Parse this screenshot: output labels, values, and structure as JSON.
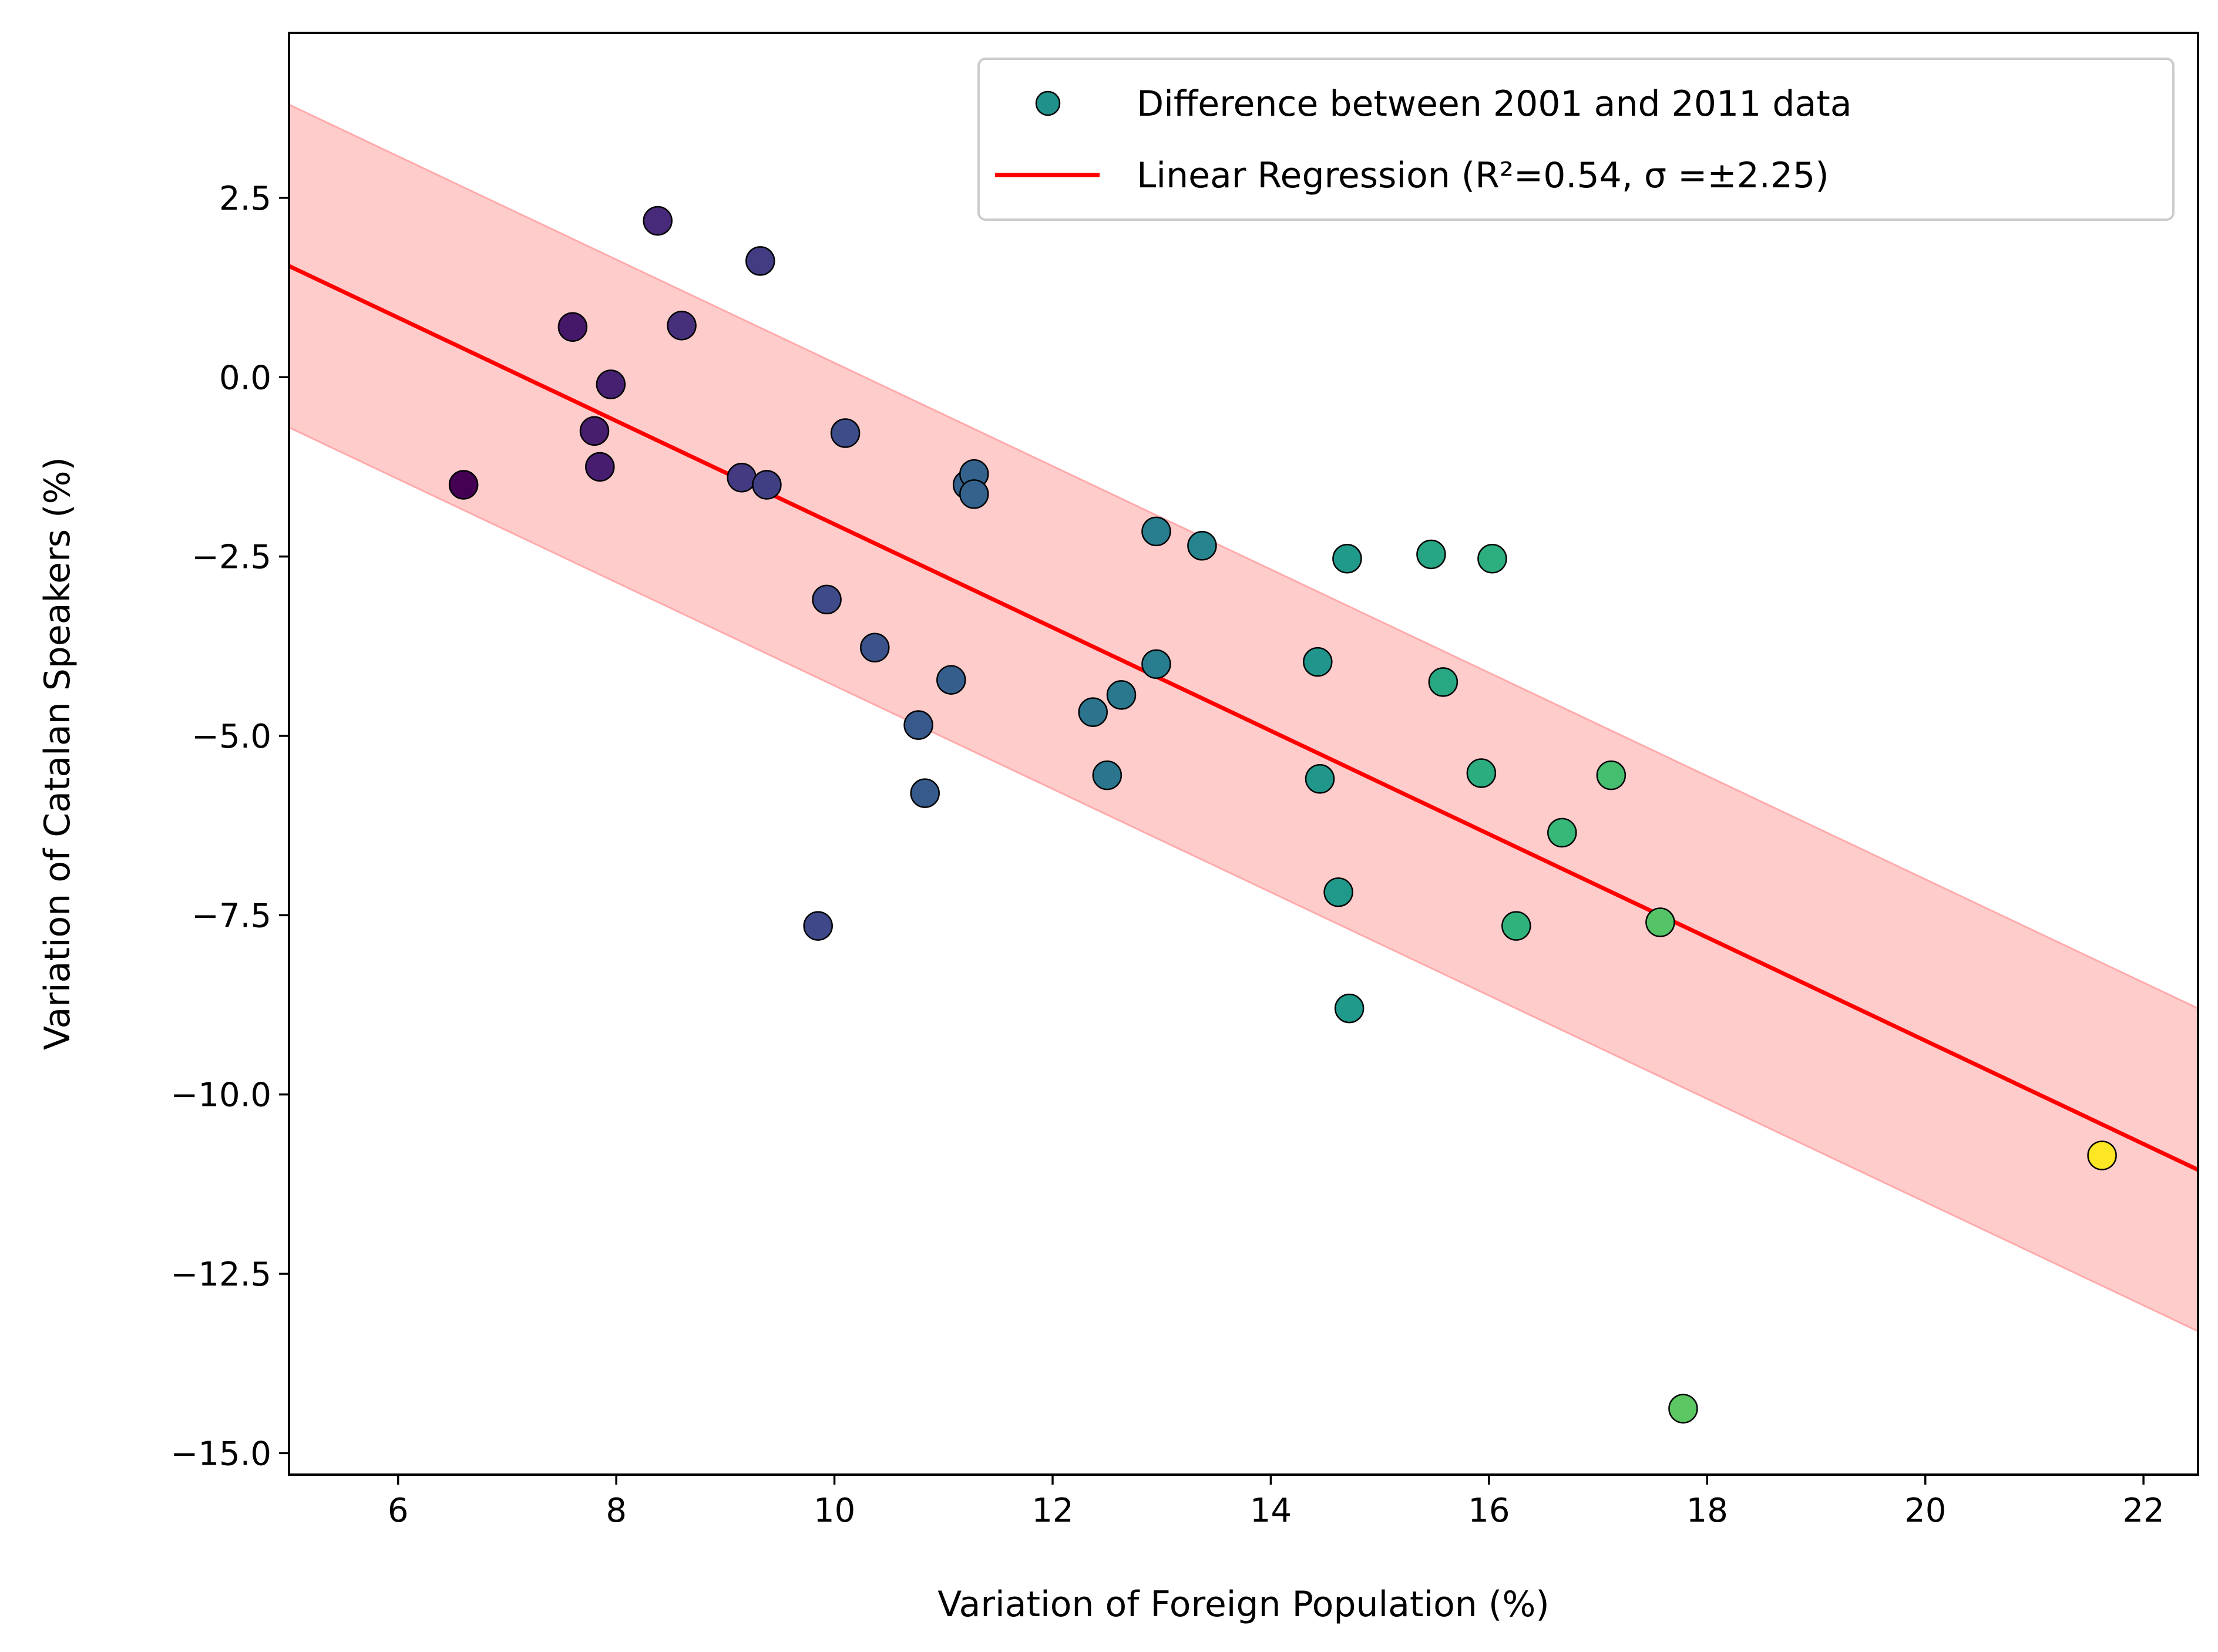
{
  "chart_data": {
    "type": "scatter",
    "title": "",
    "xlabel": "Variation of Foreign Population (%)",
    "ylabel": "Variation of Catalan Speakers (%)",
    "xlim": [
      5,
      22.5
    ],
    "ylim": [
      -15.3,
      4.8
    ],
    "xticks": [
      6,
      8,
      10,
      12,
      14,
      16,
      18,
      20,
      22
    ],
    "yticks": [
      2.5,
      0.0,
      -2.5,
      -5.0,
      -7.5,
      -10.0,
      -12.5,
      -15.0
    ],
    "xtick_labels": [
      "6",
      "8",
      "10",
      "12",
      "14",
      "16",
      "18",
      "20",
      "22"
    ],
    "ytick_labels": [
      "2.5",
      "0.0",
      "−2.5",
      "−5.0",
      "−7.5",
      "−10.0",
      "−12.5",
      "−15.0"
    ],
    "grid": false,
    "legend_position": "top-right",
    "colormap": "viridis",
    "colors": {
      "regression_line": "#ff0000",
      "band_fill": "#ffcccc",
      "band_edge": "#ffaaaa",
      "marker_edge": "#000000",
      "legend_marker": "#21918c"
    },
    "series": [
      {
        "name": "Difference between 2001 and 2011 data",
        "kind": "scatter",
        "points": [
          [
            6.6,
            -1.5
          ],
          [
            7.6,
            0.7
          ],
          [
            7.8,
            -0.75
          ],
          [
            7.85,
            -1.25
          ],
          [
            7.95,
            -0.1
          ],
          [
            8.38,
            2.18
          ],
          [
            8.6,
            0.72
          ],
          [
            9.15,
            -1.4
          ],
          [
            9.32,
            1.62
          ],
          [
            9.38,
            -1.5
          ],
          [
            9.85,
            -7.65
          ],
          [
            9.93,
            -3.1
          ],
          [
            10.1,
            -0.78
          ],
          [
            10.37,
            -3.77
          ],
          [
            10.77,
            -4.85
          ],
          [
            10.83,
            -5.8
          ],
          [
            11.07,
            -4.22
          ],
          [
            11.22,
            -1.5
          ],
          [
            11.28,
            -1.35
          ],
          [
            11.28,
            -1.63
          ],
          [
            12.37,
            -4.67
          ],
          [
            12.5,
            -5.55
          ],
          [
            12.63,
            -4.43
          ],
          [
            12.95,
            -2.15
          ],
          [
            12.95,
            -4.0
          ],
          [
            13.37,
            -2.35
          ],
          [
            14.43,
            -3.97
          ],
          [
            14.45,
            -5.6
          ],
          [
            14.62,
            -7.18
          ],
          [
            14.7,
            -2.53
          ],
          [
            14.72,
            -8.8
          ],
          [
            15.47,
            -2.47
          ],
          [
            15.58,
            -4.25
          ],
          [
            15.93,
            -5.52
          ],
          [
            16.03,
            -2.53
          ],
          [
            16.25,
            -7.65
          ],
          [
            16.67,
            -6.35
          ],
          [
            17.12,
            -5.55
          ],
          [
            17.57,
            -7.6
          ],
          [
            17.78,
            -14.38
          ],
          [
            21.62,
            -10.85
          ]
        ]
      },
      {
        "name": "Linear Regression (R²=0.54, σ =±2.25)",
        "kind": "line",
        "slope": -0.72,
        "intercept": 5.15,
        "sigma": 2.25
      }
    ]
  }
}
